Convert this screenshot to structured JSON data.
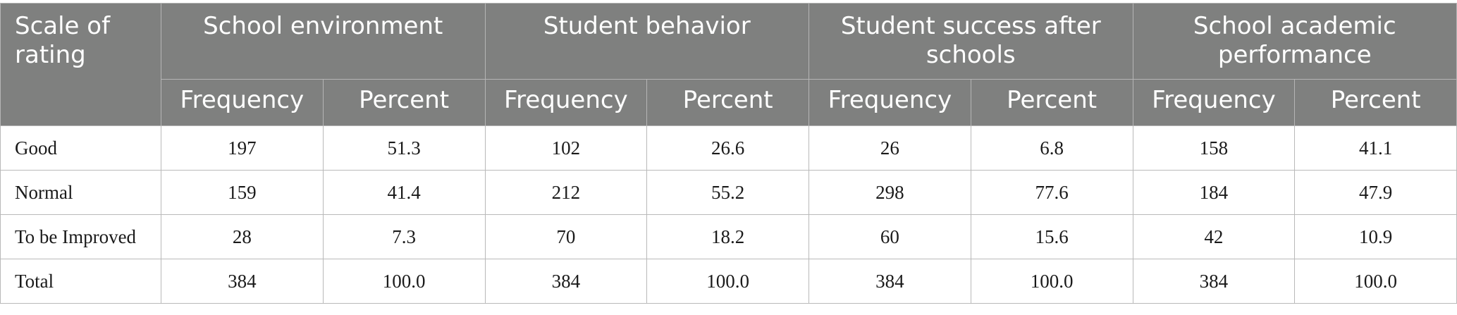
{
  "table": {
    "corner_header": "Scale of rating",
    "groups": [
      "School environment",
      "Student behavior",
      "Student success after schools",
      "School academic performance"
    ],
    "subheaders": [
      "Frequency",
      "Percent",
      "Frequency",
      "Percent",
      "Frequency",
      "Percent",
      "Frequency",
      "Percent"
    ],
    "rows": [
      {
        "label": "Good",
        "cells": [
          "197",
          "51.3",
          "102",
          "26.6",
          "26",
          "6.8",
          "158",
          "41.1"
        ]
      },
      {
        "label": "Normal",
        "cells": [
          "159",
          "41.4",
          "212",
          "55.2",
          "298",
          "77.6",
          "184",
          "47.9"
        ]
      },
      {
        "label": "To be Improved",
        "cells": [
          "28",
          "7.3",
          "70",
          "18.2",
          "60",
          "15.6",
          "42",
          "10.9"
        ]
      },
      {
        "label": "Total",
        "cells": [
          "384",
          "100.0",
          "384",
          "100.0",
          "384",
          "100.0",
          "384",
          "100.0"
        ]
      }
    ]
  }
}
